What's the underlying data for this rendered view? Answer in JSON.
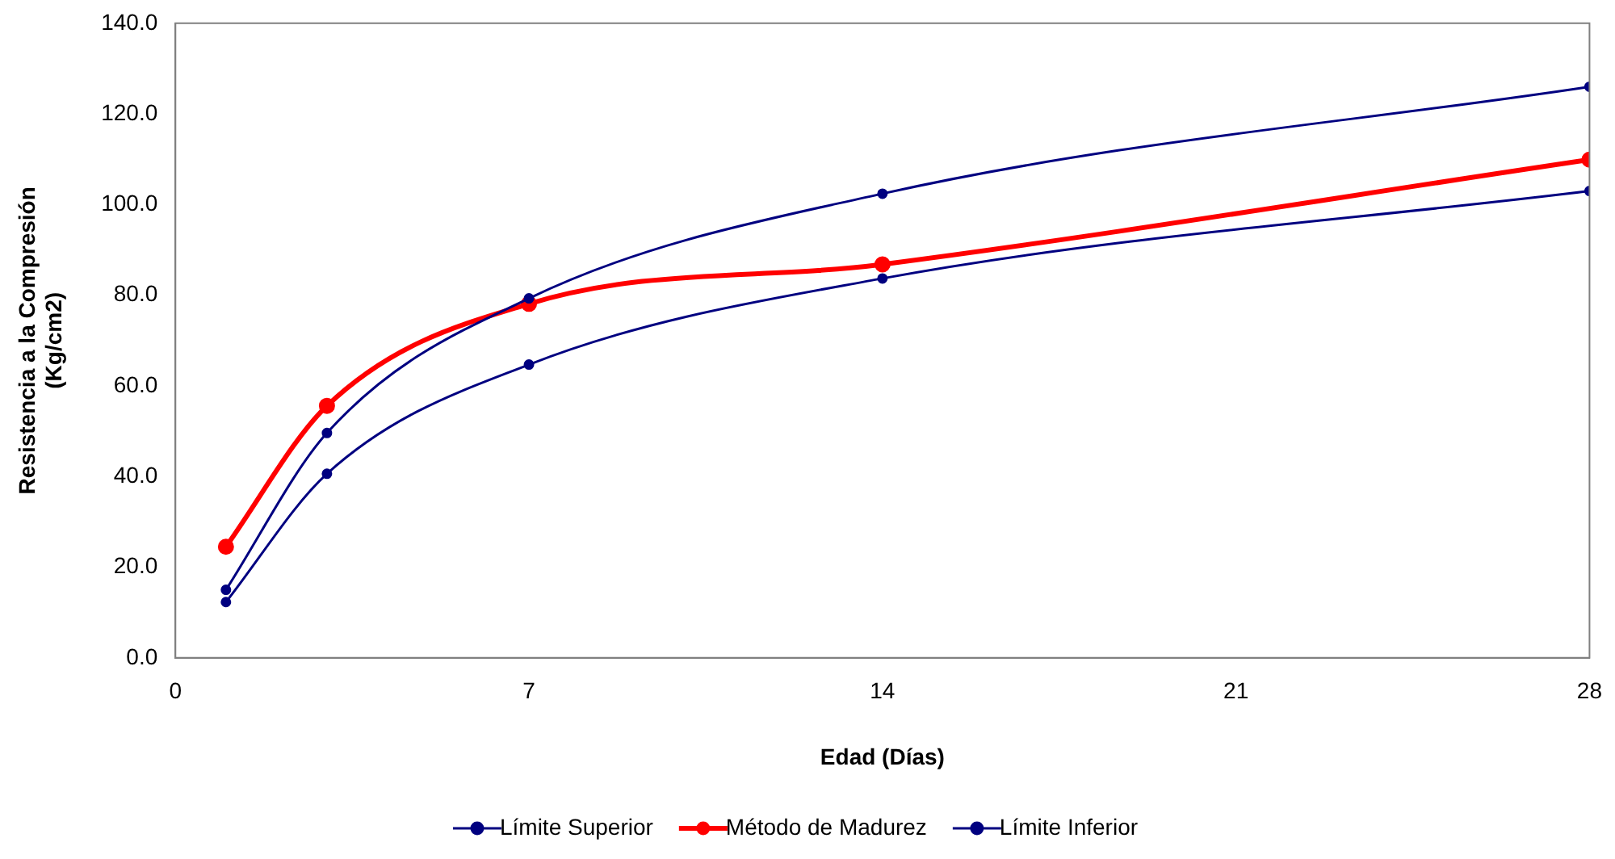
{
  "chart_data": {
    "type": "line",
    "xlabel": "Edad (Días)",
    "ylabel": "Resistencia a la Compresión\n(Kg/cm2)",
    "x": [
      1,
      3,
      7,
      14,
      28
    ],
    "series": [
      {
        "name": "Límite Superior",
        "color": "#000080",
        "values": [
          15.0,
          49.6,
          79.3,
          102.4,
          126.0
        ]
      },
      {
        "name": "Método de Madurez",
        "color": "#ff0000",
        "values": [
          24.5,
          55.6,
          78.1,
          86.8,
          109.9
        ]
      },
      {
        "name": "Límite Inferior",
        "color": "#000080",
        "values": [
          12.3,
          40.6,
          64.7,
          83.7,
          103.0
        ]
      }
    ],
    "xlim": [
      0,
      28
    ],
    "xticks": [
      0,
      7,
      14,
      21,
      28
    ],
    "ylim": [
      0,
      140
    ],
    "yticks": [
      {
        "value": 0,
        "label": "0.0"
      },
      {
        "value": 20,
        "label": "20.0"
      },
      {
        "value": 40,
        "label": "40.0"
      },
      {
        "value": 60,
        "label": "60.0"
      },
      {
        "value": 80,
        "label": "80.0"
      },
      {
        "value": 100,
        "label": "100.0"
      },
      {
        "value": 120,
        "label": "120.0"
      },
      {
        "value": 140,
        "label": "140.0"
      }
    ],
    "grid": false,
    "legend": "bottom",
    "marker": "circle",
    "line_style": "solid"
  }
}
